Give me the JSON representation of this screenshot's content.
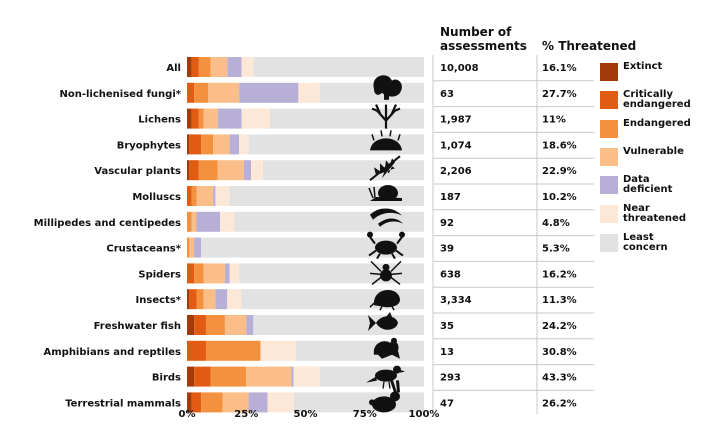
{
  "chart_data": {
    "type": "bar",
    "orientation": "horizontal",
    "stacked": true,
    "x_tick_labels": [
      "0%",
      "25%",
      "50%",
      "75%",
      "100%"
    ],
    "xlim": [
      0,
      100
    ],
    "column_headers": {
      "assessments": "Number of\nassessments",
      "threatened": "% Threatened"
    },
    "categories": [
      "All",
      "Non-lichenised fungi*",
      "Lichens",
      "Bryophytes",
      "Vascular plants",
      "Molluscs",
      "Millipedes and centipedes",
      "Crustaceans*",
      "Spiders",
      "Insects*",
      "Freshwater fish",
      "Amphibians and reptiles",
      "Birds",
      "Terrestrial mammals"
    ],
    "assessments": [
      "10,008",
      "63",
      "1,987",
      "1,074",
      "2,206",
      "187",
      "92",
      "39",
      "638",
      "3,334",
      "35",
      "13",
      "293",
      "47"
    ],
    "percent_threatened": [
      "16.1%",
      "27.7%",
      "11%",
      "18.6%",
      "22.9%",
      "10.2%",
      "4.8%",
      "5.3%",
      "16.2%",
      "11.3%",
      "24.2%",
      "30.8%",
      "43.3%",
      "26.2%"
    ],
    "series": [
      {
        "name": "Extinct",
        "color": "#a23a0c",
        "values": [
          2,
          0,
          2,
          1,
          1,
          0,
          0,
          0,
          0,
          1,
          3,
          0,
          3,
          2
        ]
      },
      {
        "name": "Critically\nendangered",
        "color": "#e25b12",
        "values": [
          3,
          3,
          3,
          5,
          4,
          2,
          0,
          0,
          3,
          3,
          5,
          8,
          7,
          4
        ]
      },
      {
        "name": "Endangered",
        "color": "#f4913f",
        "values": [
          5,
          6,
          2,
          5,
          8,
          2,
          2,
          1,
          4,
          3,
          8,
          23,
          15,
          9
        ]
      },
      {
        "name": "Vulnerable",
        "color": "#fbbe88",
        "values": [
          7,
          13,
          6,
          7,
          11,
          7,
          2,
          2,
          9,
          5,
          9,
          0,
          19,
          11
        ]
      },
      {
        "name": "Data\ndeficient",
        "color": "#b8afd6",
        "values": [
          6,
          25,
          10,
          4,
          3,
          1,
          10,
          3,
          2,
          5,
          3,
          0,
          1,
          8
        ]
      },
      {
        "name": "Near\nthreatened",
        "color": "#fde8d8",
        "values": [
          5,
          9,
          12,
          4,
          5,
          6,
          6,
          0,
          4,
          6,
          0,
          15,
          11,
          11
        ]
      },
      {
        "name": "Least\nconcern",
        "color": "#e2e2e2",
        "values": [
          72,
          44,
          65,
          74,
          68,
          82,
          80,
          94,
          78,
          77,
          72,
          54,
          44,
          55
        ]
      }
    ],
    "icons": [
      "mushroom-icon",
      "lichen-icon",
      "moss-icon",
      "fern-icon",
      "snail-icon",
      "millipede-icon",
      "crab-icon",
      "spider-icon",
      "beetle-icon",
      "fish-icon",
      "frog-icon",
      "bird-icon",
      "hare-icon"
    ]
  }
}
